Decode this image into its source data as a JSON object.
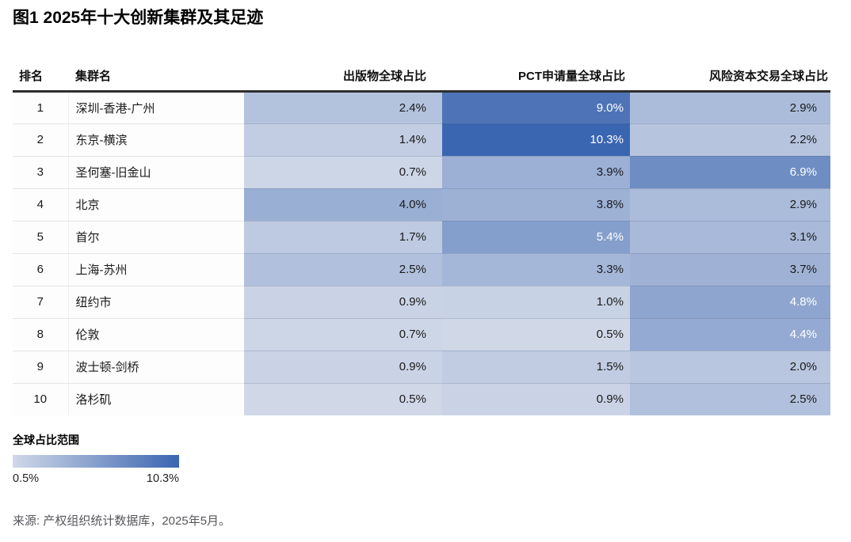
{
  "figure": {
    "title": "图1 2025年十大创新集群及其足迹"
  },
  "chart_data": {
    "type": "heatmap",
    "title": "图1 2025年十大创新集群及其足迹",
    "value_unit": "percent_global_share",
    "columns": [
      "排名",
      "集群名",
      "出版物全球占比",
      "PCT申请量全球占比",
      "风险资本交易全球占比"
    ],
    "rows": [
      {
        "rank": 1,
        "cluster": "深圳-香港-广州",
        "publications": 2.4,
        "pct_filings": 9.0,
        "venture_capital": 2.9
      },
      {
        "rank": 2,
        "cluster": "东京-横滨",
        "publications": 1.4,
        "pct_filings": 10.3,
        "venture_capital": 2.2
      },
      {
        "rank": 3,
        "cluster": "圣何塞-旧金山",
        "publications": 0.7,
        "pct_filings": 3.9,
        "venture_capital": 6.9
      },
      {
        "rank": 4,
        "cluster": "北京",
        "publications": 4.0,
        "pct_filings": 3.8,
        "venture_capital": 2.9
      },
      {
        "rank": 5,
        "cluster": "首尔",
        "publications": 1.7,
        "pct_filings": 5.4,
        "venture_capital": 3.1
      },
      {
        "rank": 6,
        "cluster": "上海-苏州",
        "publications": 2.5,
        "pct_filings": 3.3,
        "venture_capital": 3.7
      },
      {
        "rank": 7,
        "cluster": "纽约市",
        "publications": 0.9,
        "pct_filings": 1.0,
        "venture_capital": 4.8
      },
      {
        "rank": 8,
        "cluster": "伦敦",
        "publications": 0.7,
        "pct_filings": 0.5,
        "venture_capital": 4.4
      },
      {
        "rank": 9,
        "cluster": "波士顿-剑桥",
        "publications": 0.9,
        "pct_filings": 1.5,
        "venture_capital": 2.0
      },
      {
        "rank": 10,
        "cluster": "洛杉矶",
        "publications": 0.5,
        "pct_filings": 0.9,
        "venture_capital": 2.5
      }
    ],
    "scale": {
      "min": 0.5,
      "max": 10.3,
      "min_color": "#d0d8e8",
      "max_color": "#3a65b0",
      "white_text_threshold": 4.4
    },
    "legend": {
      "label": "全球占比范围",
      "min_label": "0.5%",
      "max_label": "10.3%"
    },
    "source": "来源: 产权组织统计数据库，2025年5月。"
  }
}
